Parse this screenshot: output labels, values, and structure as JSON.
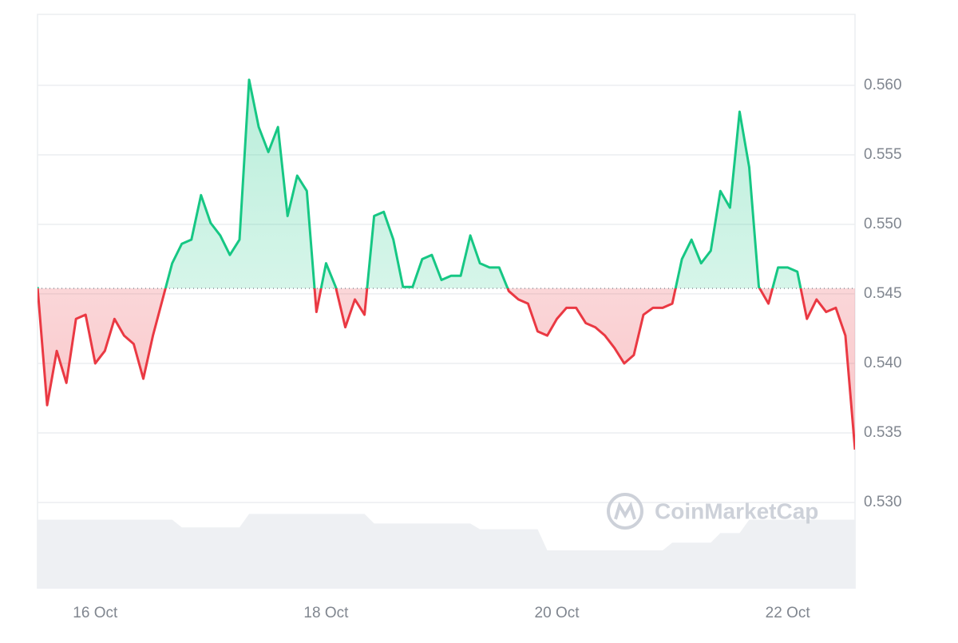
{
  "chart_data": {
    "type": "line",
    "categories": [
      null,
      null,
      null,
      null,
      null,
      null,
      "16 Oct",
      null,
      null,
      null,
      null,
      null,
      null,
      null,
      null,
      null,
      null,
      null,
      null,
      null,
      null,
      null,
      null,
      null,
      null,
      null,
      null,
      null,
      null,
      null,
      "18 Oct",
      null,
      null,
      null,
      null,
      null,
      null,
      null,
      null,
      null,
      null,
      null,
      null,
      null,
      null,
      null,
      null,
      null,
      null,
      null,
      null,
      null,
      null,
      null,
      "20 Oct",
      null,
      null,
      null,
      null,
      null,
      null,
      null,
      null,
      null,
      null,
      null,
      null,
      null,
      null,
      null,
      null,
      null,
      null,
      null,
      null,
      null,
      null,
      null,
      "22 Oct",
      null,
      null,
      null,
      null,
      null,
      null,
      null
    ],
    "series": [
      {
        "name": "Price",
        "color_up": "#16c784",
        "color_down": "#ea3943",
        "values": [
          0.5455,
          0.537,
          0.5409,
          0.5386,
          0.5432,
          0.5435,
          0.54,
          0.5409,
          0.5432,
          0.542,
          0.5414,
          0.5389,
          0.542,
          0.5446,
          0.5472,
          0.5486,
          0.5489,
          0.5521,
          0.5501,
          0.5492,
          0.5478,
          0.5489,
          0.5604,
          0.557,
          0.5552,
          0.557,
          0.5506,
          0.5535,
          0.5524,
          0.5437,
          0.5472,
          0.5455,
          0.5426,
          0.5446,
          0.5435,
          0.5506,
          0.5509,
          0.5489,
          0.5455,
          0.5455,
          0.5475,
          0.5478,
          0.546,
          0.5463,
          0.5463,
          0.5492,
          0.5472,
          0.5469,
          0.5469,
          0.5452,
          0.5446,
          0.5443,
          0.5423,
          0.542,
          0.5432,
          0.544,
          0.544,
          0.5429,
          0.5426,
          0.542,
          0.5411,
          0.54,
          0.5406,
          0.5435,
          0.544,
          0.544,
          0.5443,
          0.5475,
          0.5489,
          0.5472,
          0.5481,
          0.5524,
          0.5512,
          0.5581,
          0.5541,
          0.5455,
          0.5443,
          0.5469,
          0.5469,
          0.5466,
          0.5432,
          0.5446,
          0.5437,
          0.544,
          0.542,
          0.5338
        ]
      },
      {
        "name": "Volume",
        "color": "#eef0f3",
        "values": [
          72,
          72,
          72,
          72,
          72,
          72,
          72,
          72,
          72,
          72,
          72,
          72,
          72,
          72,
          72,
          64,
          64,
          64,
          64,
          64,
          64,
          64,
          78,
          78,
          78,
          78,
          78,
          78,
          78,
          78,
          78,
          78,
          78,
          78,
          78,
          68,
          68,
          68,
          68,
          68,
          68,
          68,
          68,
          68,
          68,
          68,
          62,
          62,
          62,
          62,
          62,
          62,
          62,
          40,
          40,
          40,
          40,
          40,
          40,
          40,
          40,
          40,
          40,
          40,
          40,
          40,
          48,
          48,
          48,
          48,
          48,
          58,
          58,
          58,
          72,
          72,
          72,
          72,
          72,
          72,
          72,
          72,
          72,
          72,
          72,
          72
        ]
      }
    ],
    "baseline": 0.5454,
    "ylim": [
      0.5238,
      0.5651
    ],
    "yticks": [
      {
        "value": 0.53,
        "label": "0.530"
      },
      {
        "value": 0.535,
        "label": "0.535"
      },
      {
        "value": 0.54,
        "label": "0.540"
      },
      {
        "value": 0.545,
        "label": "0.545"
      },
      {
        "value": 0.55,
        "label": "0.550"
      },
      {
        "value": 0.555,
        "label": "0.555"
      },
      {
        "value": 0.56,
        "label": "0.560"
      }
    ],
    "grid": true,
    "watermark": "CoinMarketCap"
  }
}
